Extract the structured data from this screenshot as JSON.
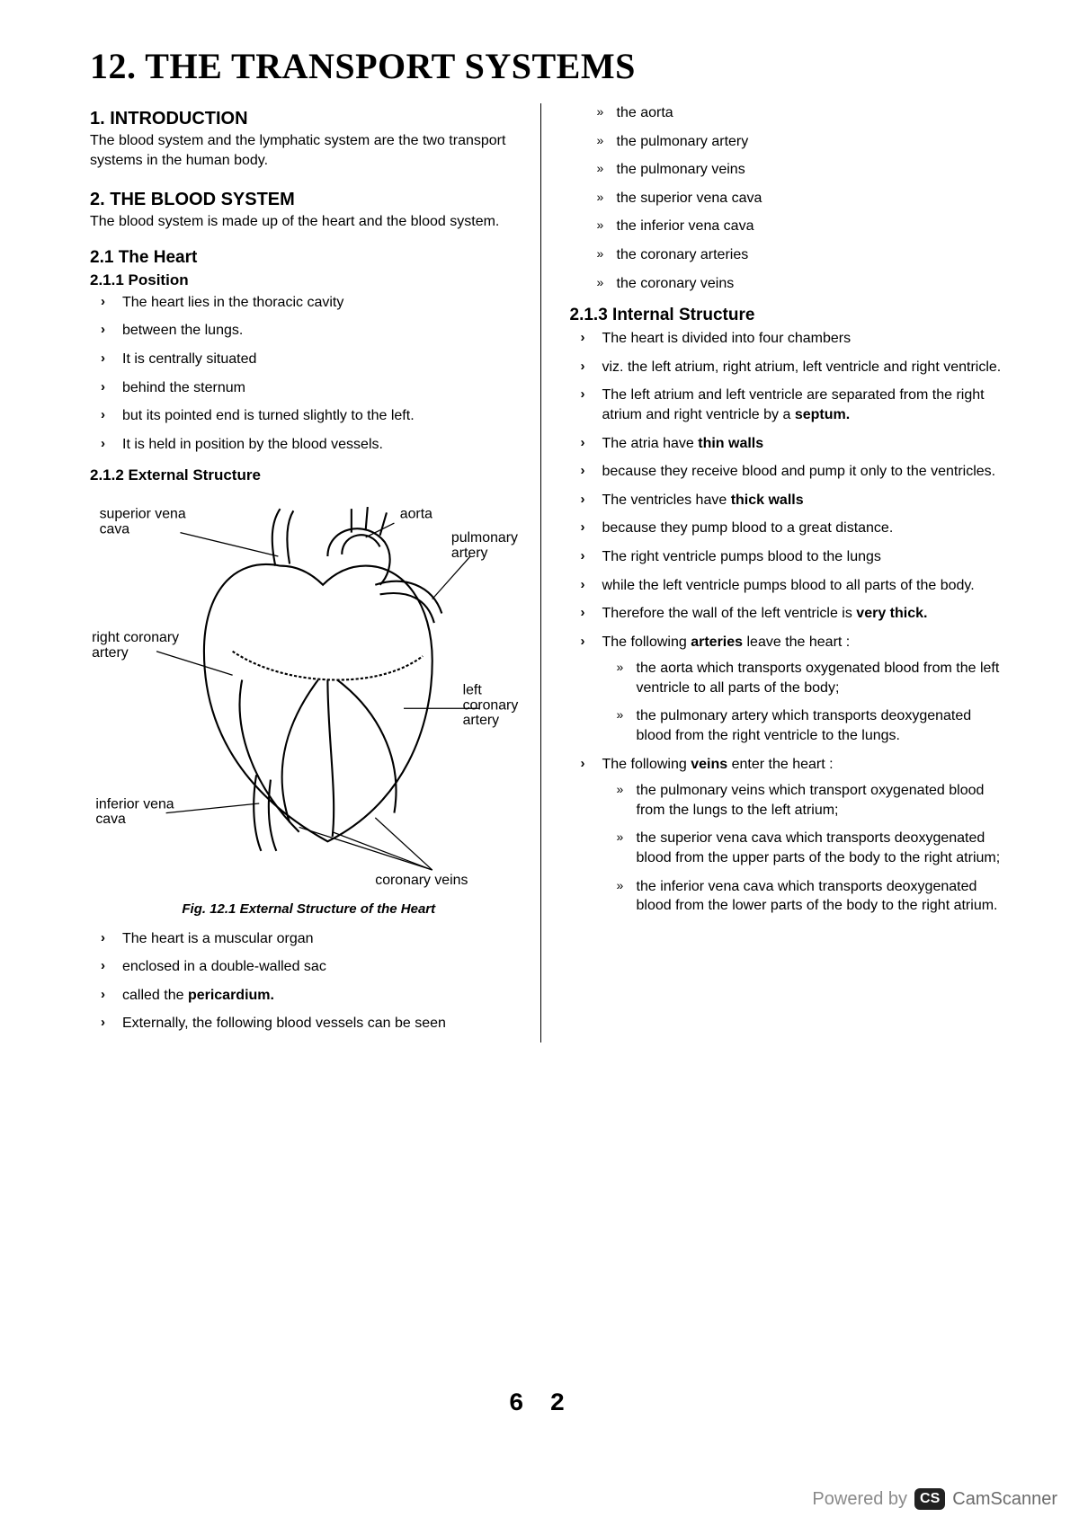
{
  "main_title": "12. THE TRANSPORT SYSTEMS",
  "left": {
    "h_intro": "1. INTRODUCTION",
    "p_intro": "The blood system and the lymphatic system are the two transport systems in the human body.",
    "h_blood": "2. THE BLOOD SYSTEM",
    "p_blood": "The blood system is made up of the heart and the blood system.",
    "h_heart": "2.1 The Heart",
    "h_position": "2.1.1 Position",
    "position_items": [
      "The heart lies in the thoracic cavity",
      "between the lungs.",
      "It is centrally situated",
      "behind the sternum",
      "but its pointed end is turned slightly to the left.",
      "It is held in position by the blood vessels."
    ],
    "h_external": "2.1.2 External Structure",
    "figure_caption": "Fig. 12.1 External Structure of the Heart",
    "external_items": [
      {
        "text": "The heart is a muscular organ"
      },
      {
        "text": "enclosed in a double-walled sac"
      },
      {
        "pre": "called the ",
        "bold": "pericardium."
      },
      {
        "text": "Externally, the following blood vessels can be seen"
      }
    ]
  },
  "right": {
    "vessels": [
      "the aorta",
      "the pulmonary artery",
      "the pulmonary veins",
      "the superior vena cava",
      "the inferior vena cava",
      "the coronary arteries",
      "the coronary veins"
    ],
    "h_internal": "2.1.3 Internal Structure",
    "internal_items": [
      {
        "text": "The heart is divided into four chambers"
      },
      {
        "text": "viz. the left atrium, right atrium, left ventricle and right ventricle."
      },
      {
        "pre": "The left atrium and left ventricle are separated from the right atrium and right ventricle by a ",
        "bold": "septum."
      },
      {
        "pre": "The atria have ",
        "bold": "thin walls"
      },
      {
        "text": "because they receive blood and pump it only to the ventricles."
      },
      {
        "pre": "The ventricles have ",
        "bold": "thick walls"
      },
      {
        "text": "because they pump blood to a great distance."
      },
      {
        "text": "The right ventricle pumps blood to the lungs"
      },
      {
        "text": "while the left ventricle pumps blood to all parts of the body."
      },
      {
        "pre": "Therefore the wall of the left ventricle is ",
        "bold": "very thick."
      },
      {
        "pre": "The following ",
        "bold": "arteries",
        "post": " leave the heart :",
        "sub": [
          "the aorta which transports oxygenated blood from the left ventricle to all parts of the body;",
          "the pulmonary artery which transports deoxygenated blood from the right ventricle to the lungs."
        ]
      },
      {
        "pre": "The following ",
        "bold": "veins",
        "post": " enter the heart :",
        "sub": [
          "the pulmonary veins which transport oxygenated blood from the lungs to the left atrium;",
          "the superior vena cava which transports deoxygenated blood from the upper parts of the body to the right atrium;",
          "the inferior vena cava which transports deoxygenated blood from the lower parts of the body to the right atrium."
        ]
      }
    ]
  },
  "diagram": {
    "labels": {
      "svc": "superior vena\ncava",
      "aorta": "aorta",
      "pa": "pulmonary\nartery",
      "rca": "right coronary\nartery",
      "lca": "left\ncoronary\nartery",
      "ivc": "inferior vena\ncava",
      "cv": "coronary veins"
    },
    "stroke": "#000000",
    "fill": "#ffffff",
    "label_fontsize": 15
  },
  "page_number": "6 2",
  "watermark": {
    "powered": "Powered by",
    "badge": "CS",
    "brand": "CamScanner"
  },
  "colors": {
    "text": "#000000",
    "background": "#ffffff",
    "watermark_gray": "#8a8a8a"
  }
}
